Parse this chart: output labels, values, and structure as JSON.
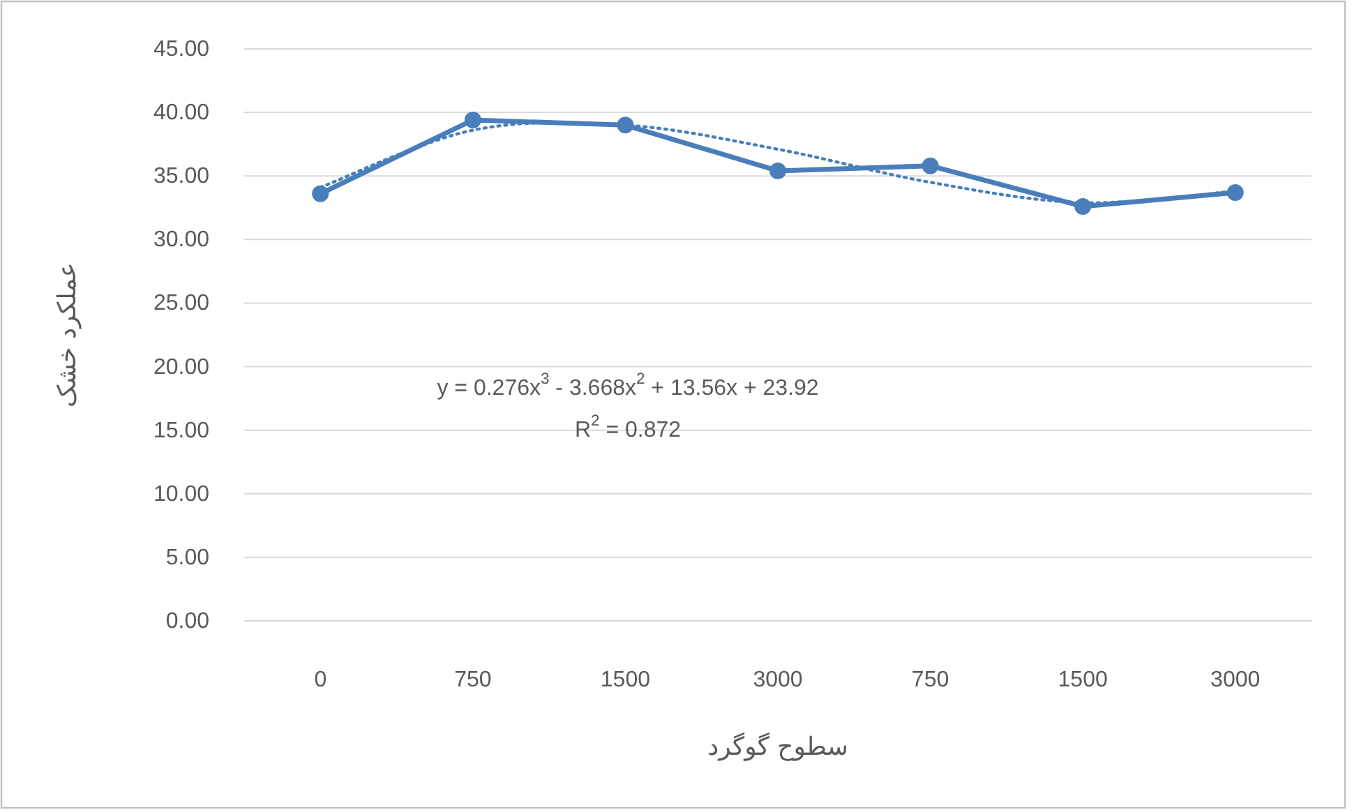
{
  "chart_data": {
    "type": "line",
    "xlabel": "سطوح گوگرد",
    "ylabel": "عملکرد خشک",
    "categories": [
      "0",
      "750",
      "1500",
      "3000",
      "750",
      "1500",
      "3000"
    ],
    "series": [
      {
        "color": "#4a7ebb",
        "marker": "circle",
        "line_style": "solid",
        "values": [
          33.6,
          39.4,
          39.0,
          35.4,
          35.8,
          32.6,
          33.7
        ]
      },
      {
        "color": "#4a7ebb",
        "marker": "none",
        "line_style": "dotted",
        "values": [
          34.1,
          38.6,
          39.0,
          37.1,
          34.5,
          32.9,
          33.8
        ]
      }
    ],
    "ylim": [
      0,
      45
    ],
    "yticks": [
      {
        "value": 0,
        "label": "0.00"
      },
      {
        "value": 5,
        "label": "5.00"
      },
      {
        "value": 10,
        "label": "10.00"
      },
      {
        "value": 15,
        "label": "15.00"
      },
      {
        "value": 20,
        "label": "20.00"
      },
      {
        "value": 25,
        "label": "25.00"
      },
      {
        "value": 30,
        "label": "30.00"
      },
      {
        "value": 35,
        "label": "35.00"
      },
      {
        "value": 40,
        "label": "40.00"
      },
      {
        "value": 45,
        "label": "45.00"
      }
    ],
    "grid": "y",
    "annotations": [
      "y = 0.276x$^{3}$ - 3.668x$^{2}$ + 13.56x + 23.92",
      "R$^{2}$ = 0.872"
    ]
  }
}
